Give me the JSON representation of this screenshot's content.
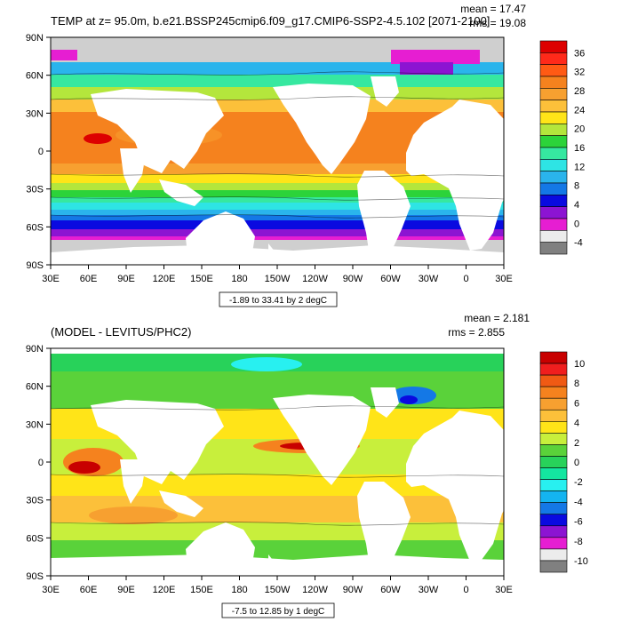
{
  "panel1": {
    "title": "TEMP at z=  95.0m, b.e21.BSSP245cmip6.f09_g17.CMIP6-SSP2-4.5.102 [2071-2100]",
    "mean_label": "mean = 17.47",
    "rms_label": "rms = 19.08",
    "range_label": "-1.89 to 33.41 by 2 degC",
    "colorbar_labels": [
      "36",
      "32",
      "28",
      "24",
      "20",
      "16",
      "12",
      "8",
      "4",
      "0",
      "-4"
    ]
  },
  "panel2": {
    "title": "(MODEL - LEVITUS/PHC2)",
    "mean_label": "mean = 2.181",
    "rms_label": "rms = 2.855",
    "range_label": "-7.5 to 12.85 by 1 degC",
    "colorbar_labels": [
      "10",
      "8",
      "6",
      "4",
      "2",
      "0",
      "-2",
      "-4",
      "-6",
      "-8",
      "-10"
    ]
  },
  "axes": {
    "lat_labels": [
      "90N",
      "60N",
      "30N",
      "0",
      "30S",
      "60S",
      "90S"
    ],
    "lon_labels": [
      "30E",
      "60E",
      "90E",
      "120E",
      "150E",
      "180",
      "150W",
      "120W",
      "90W",
      "60W",
      "30W",
      "0",
      "30E"
    ]
  },
  "colors": {
    "panel1_scale": [
      "#dd0000",
      "#ff2a1a",
      "#ff5a14",
      "#f5821e",
      "#f7a030",
      "#fcc03a",
      "#ffe418",
      "#b4e63c",
      "#2cd33a",
      "#36e8a0",
      "#2ee4e4",
      "#2ab4ec",
      "#1478e6",
      "#0a0ae0",
      "#8c14d2",
      "#e61ed2",
      "#ececec",
      "#808080"
    ],
    "panel2_scale": [
      "#c80000",
      "#f01e1e",
      "#f05a14",
      "#f5821e",
      "#f7a030",
      "#fcc03a",
      "#ffe418",
      "#c8ef3c",
      "#5ad23a",
      "#28d25a",
      "#14e6a0",
      "#28f0f0",
      "#14b4f0",
      "#1478e6",
      "#0a0ae0",
      "#8c14d2",
      "#e61ed2",
      "#ececec",
      "#808080"
    ],
    "land": "#ffffff",
    "ice": "#cfcfcf"
  }
}
